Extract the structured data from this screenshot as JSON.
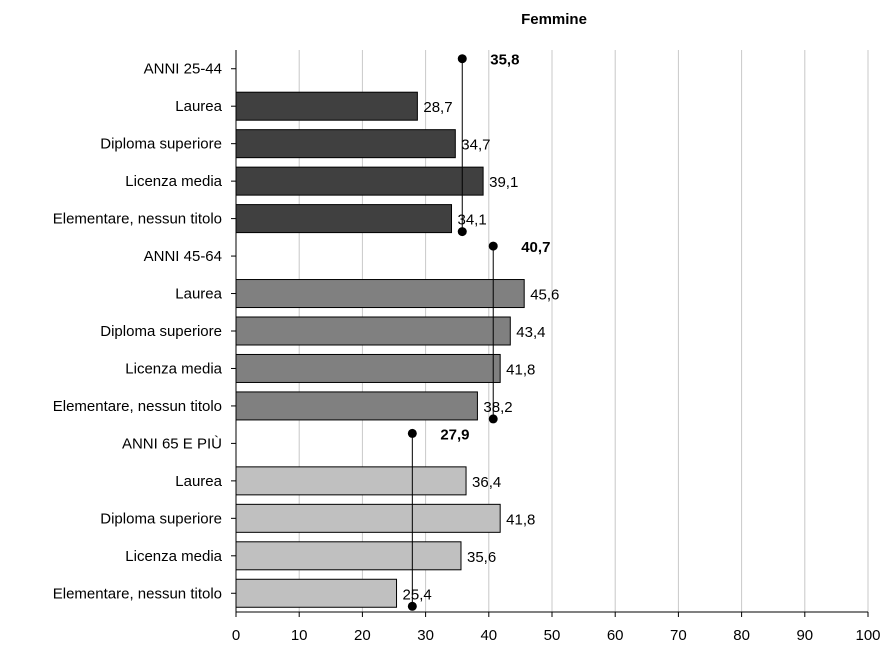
{
  "chart_data": {
    "type": "bar",
    "orientation": "horizontal",
    "title": "Femmine",
    "xlim": [
      0,
      100
    ],
    "xticks": [
      "0",
      "10",
      "20",
      "30",
      "40",
      "50",
      "60",
      "70",
      "80",
      "90",
      "100"
    ],
    "grid": "vertical",
    "groups": [
      {
        "label": "ANNI 25-44",
        "average": 35.8,
        "average_label": "35,8",
        "color": "#404040",
        "bars": [
          {
            "category": "Laurea",
            "value": 28.7,
            "value_label": "28,7"
          },
          {
            "category": "Diploma superiore",
            "value": 34.7,
            "value_label": "34,7"
          },
          {
            "category": "Licenza media",
            "value": 39.1,
            "value_label": "39,1"
          },
          {
            "category": "Elementare, nessun titolo",
            "value": 34.1,
            "value_label": "34,1"
          }
        ]
      },
      {
        "label": "ANNI 45-64",
        "average": 40.7,
        "average_label": "40,7",
        "color": "#808080",
        "bars": [
          {
            "category": "Laurea",
            "value": 45.6,
            "value_label": "45,6"
          },
          {
            "category": "Diploma superiore",
            "value": 43.4,
            "value_label": "43,4"
          },
          {
            "category": "Licenza media",
            "value": 41.8,
            "value_label": "41,8"
          },
          {
            "category": "Elementare, nessun titolo",
            "value": 38.2,
            "value_label": "38,2"
          }
        ]
      },
      {
        "label": "ANNI 65 E PIÙ",
        "average": 27.9,
        "average_label": "27,9",
        "color": "#c0c0c0",
        "bars": [
          {
            "category": "Laurea",
            "value": 36.4,
            "value_label": "36,4"
          },
          {
            "category": "Diploma superiore",
            "value": 41.8,
            "value_label": "41,8"
          },
          {
            "category": "Licenza media",
            "value": 35.6,
            "value_label": "35,6"
          },
          {
            "category": "Elementare, nessun titolo",
            "value": 25.4,
            "value_label": "25,4"
          }
        ]
      }
    ]
  }
}
